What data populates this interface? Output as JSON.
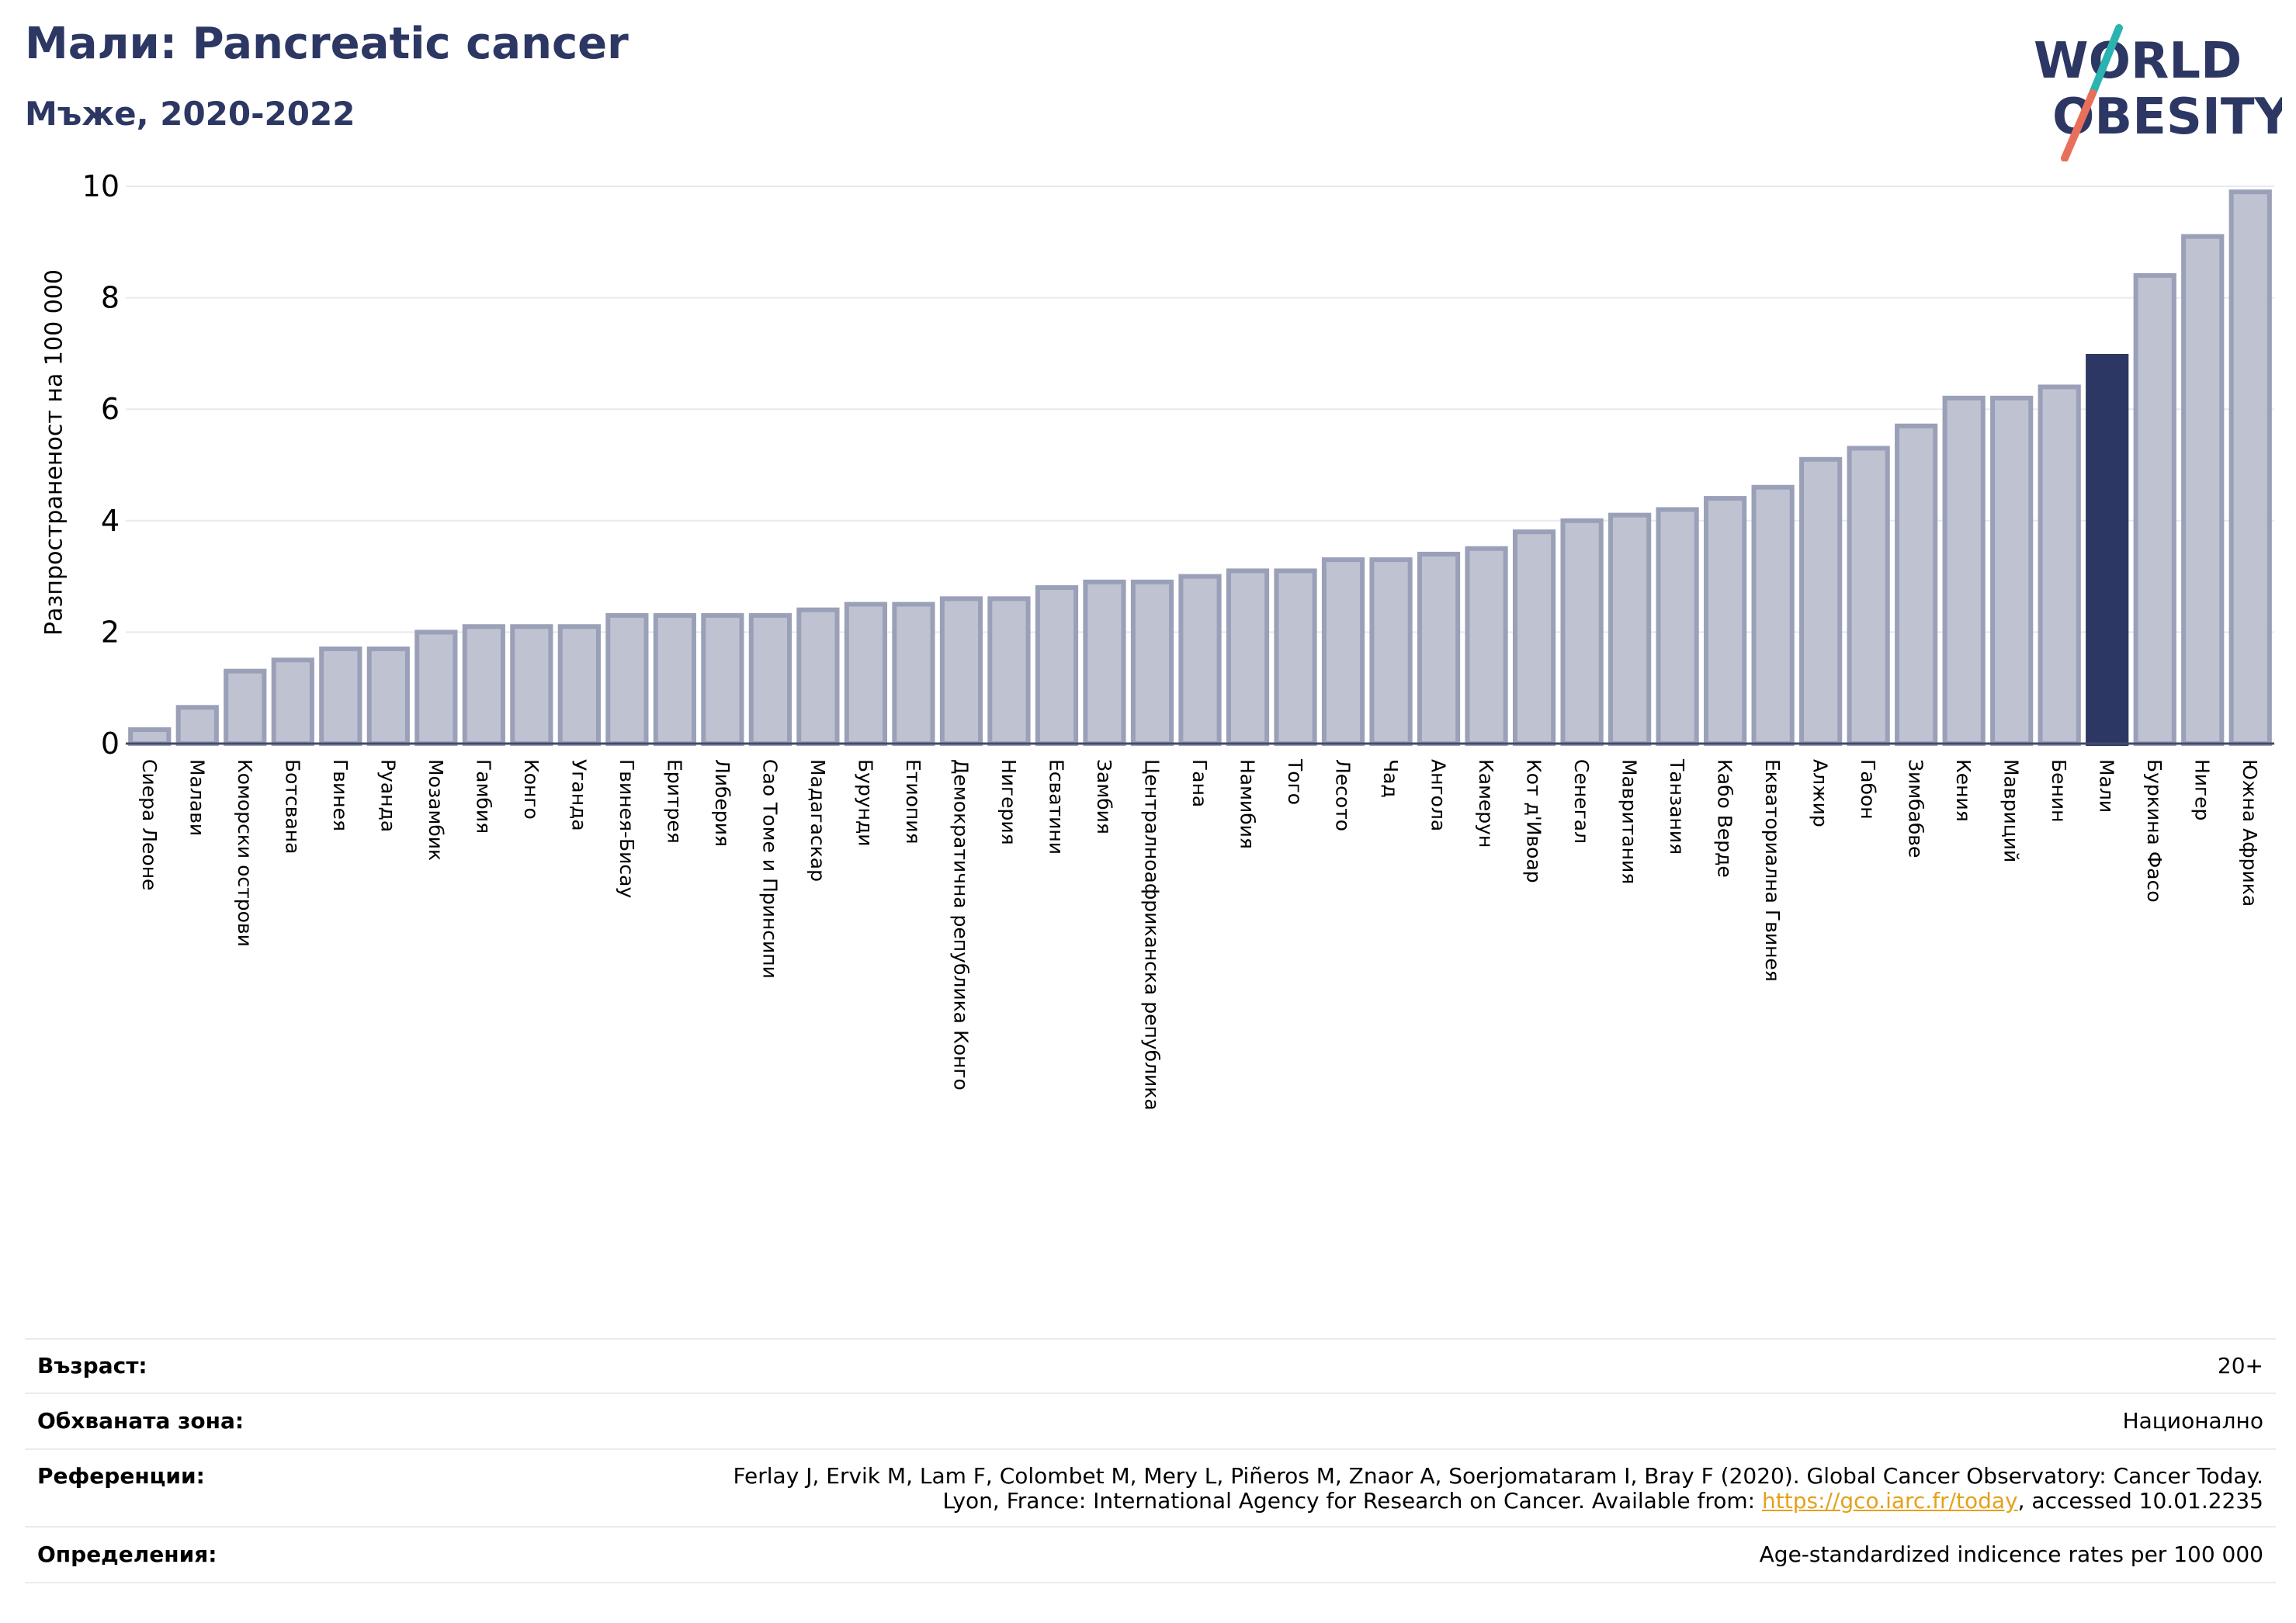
{
  "header": {
    "title": "Мали: Pancreatic cancer",
    "subtitle": "Мъже, 2020-2022"
  },
  "logo": {
    "line1": "WORLD",
    "line2": "OBESITY",
    "text_color": "#2d3763",
    "accent_teal": "#2bb3b1",
    "accent_orange": "#e8705a"
  },
  "chart_data": {
    "type": "bar",
    "ylabel": "Разпространеност  на 100 000",
    "ylim": [
      0,
      10
    ],
    "yticks": [
      "0",
      "2",
      "4",
      "6",
      "8",
      "10"
    ],
    "highlight": "Мали",
    "colors": {
      "bar_fill": "#bfc2d0",
      "bar_stroke": "#9aa0b8",
      "highlight_fill": "#2d3763",
      "grid": "#e6e9f0"
    },
    "categories": [
      "Сиера Леоне",
      "Малави",
      "Коморски острови",
      "Ботсвана",
      "Гвинея",
      "Руанда",
      "Мозамбик",
      "Гамбия",
      "Конго",
      "Уганда",
      "Гвинея-Бисау",
      "Еритрея",
      "Либерия",
      "Сао Томе и Принсипи",
      "Мадагаскар",
      "Бурунди",
      "Етиопия",
      "Демократична република Конго",
      "Нигерия",
      "Есватини",
      "Замбия",
      "Централноафриканска република",
      "Гана",
      "Намибия",
      "Того",
      "Лесото",
      "Чад",
      "Ангола",
      "Камерун",
      "Кот д'Ивоар",
      "Сенегал",
      "Мавритания",
      "Танзания",
      "Кабо Верде",
      "Екваториална Гвинея",
      "Алжир",
      "Габон",
      "Зимбабве",
      "Кения",
      "Мавриций",
      "Бенин",
      "Мали",
      "Буркина Фасо",
      "Нигер",
      "Южна Африка"
    ],
    "values": [
      0.25,
      0.65,
      1.3,
      1.5,
      1.7,
      1.7,
      2.0,
      2.1,
      2.1,
      2.1,
      2.3,
      2.3,
      2.3,
      2.3,
      2.4,
      2.5,
      2.5,
      2.6,
      2.6,
      2.8,
      2.9,
      2.9,
      3.0,
      3.1,
      3.1,
      3.3,
      3.3,
      3.4,
      3.5,
      3.8,
      4.0,
      4.1,
      4.2,
      4.4,
      4.6,
      5.1,
      5.3,
      5.7,
      6.2,
      6.2,
      6.4,
      6.95,
      8.4,
      9.1,
      9.9
    ]
  },
  "info": {
    "age_label": "Възраст:",
    "age_value": "20+",
    "coverage_label": "Обхваната зона:",
    "coverage_value": "Национално",
    "references_label": "Референции:",
    "references_line1": "Ferlay J, Ervik M, Lam F, Colombet M, Mery L, Piñeros M, Znaor A, Soerjomataram I, Bray F (2020). Global Cancer Observatory: Cancer Today.",
    "references_line2_prefix": "Lyon, France: International Agency for Research on Cancer. Available from: ",
    "references_link": "https://gco.iarc.fr/today",
    "references_line2_suffix": ", accessed 10.01.2235",
    "definitions_label": "Определения:",
    "definitions_value": "Age-standardized indicence rates per 100 000"
  }
}
